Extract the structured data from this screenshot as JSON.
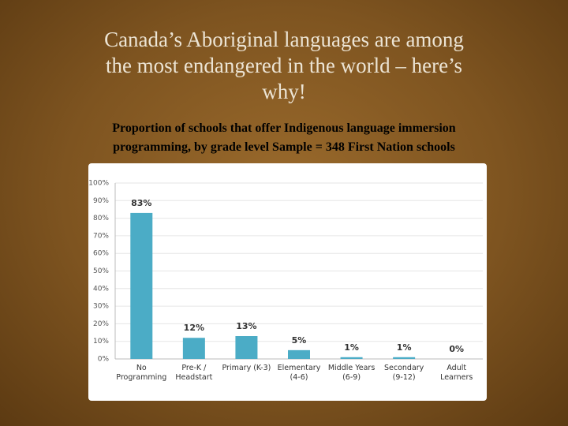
{
  "chart_data": {
    "type": "bar",
    "title": "Canada’s Aboriginal languages are among\nthe most endangered in the world – here’s\nwhy!",
    "subtitle": "Proportion of schools that offer Indigenous language immersion\nprogramming, by grade level Sample = 348 First Nation schools",
    "categories": [
      "No\nProgramming",
      "Pre-K /\nHeadstart",
      "Primary (K-3)",
      "Elementary\n(4-6)",
      "Middle Years\n(6-9)",
      "Secondary\n(9-12)",
      "Adult\nLearners"
    ],
    "values": [
      83,
      12,
      13,
      5,
      1,
      1,
      0
    ],
    "value_labels": [
      "83%",
      "12%",
      "13%",
      "5%",
      "1%",
      "1%",
      "0%"
    ],
    "color": "#4bacc6",
    "ylim": [
      0,
      100
    ],
    "yticks": [
      {
        "value": 0,
        "label": "0%"
      },
      {
        "value": 10,
        "label": "10%"
      },
      {
        "value": 20,
        "label": "20%"
      },
      {
        "value": 30,
        "label": "30%"
      },
      {
        "value": 40,
        "label": "40%"
      },
      {
        "value": 50,
        "label": "50%"
      },
      {
        "value": 60,
        "label": "60%"
      },
      {
        "value": 70,
        "label": "70%"
      },
      {
        "value": 80,
        "label": "80%"
      },
      {
        "value": 90,
        "label": "90%"
      },
      {
        "value": 100,
        "label": "100%"
      }
    ],
    "grid": true
  }
}
